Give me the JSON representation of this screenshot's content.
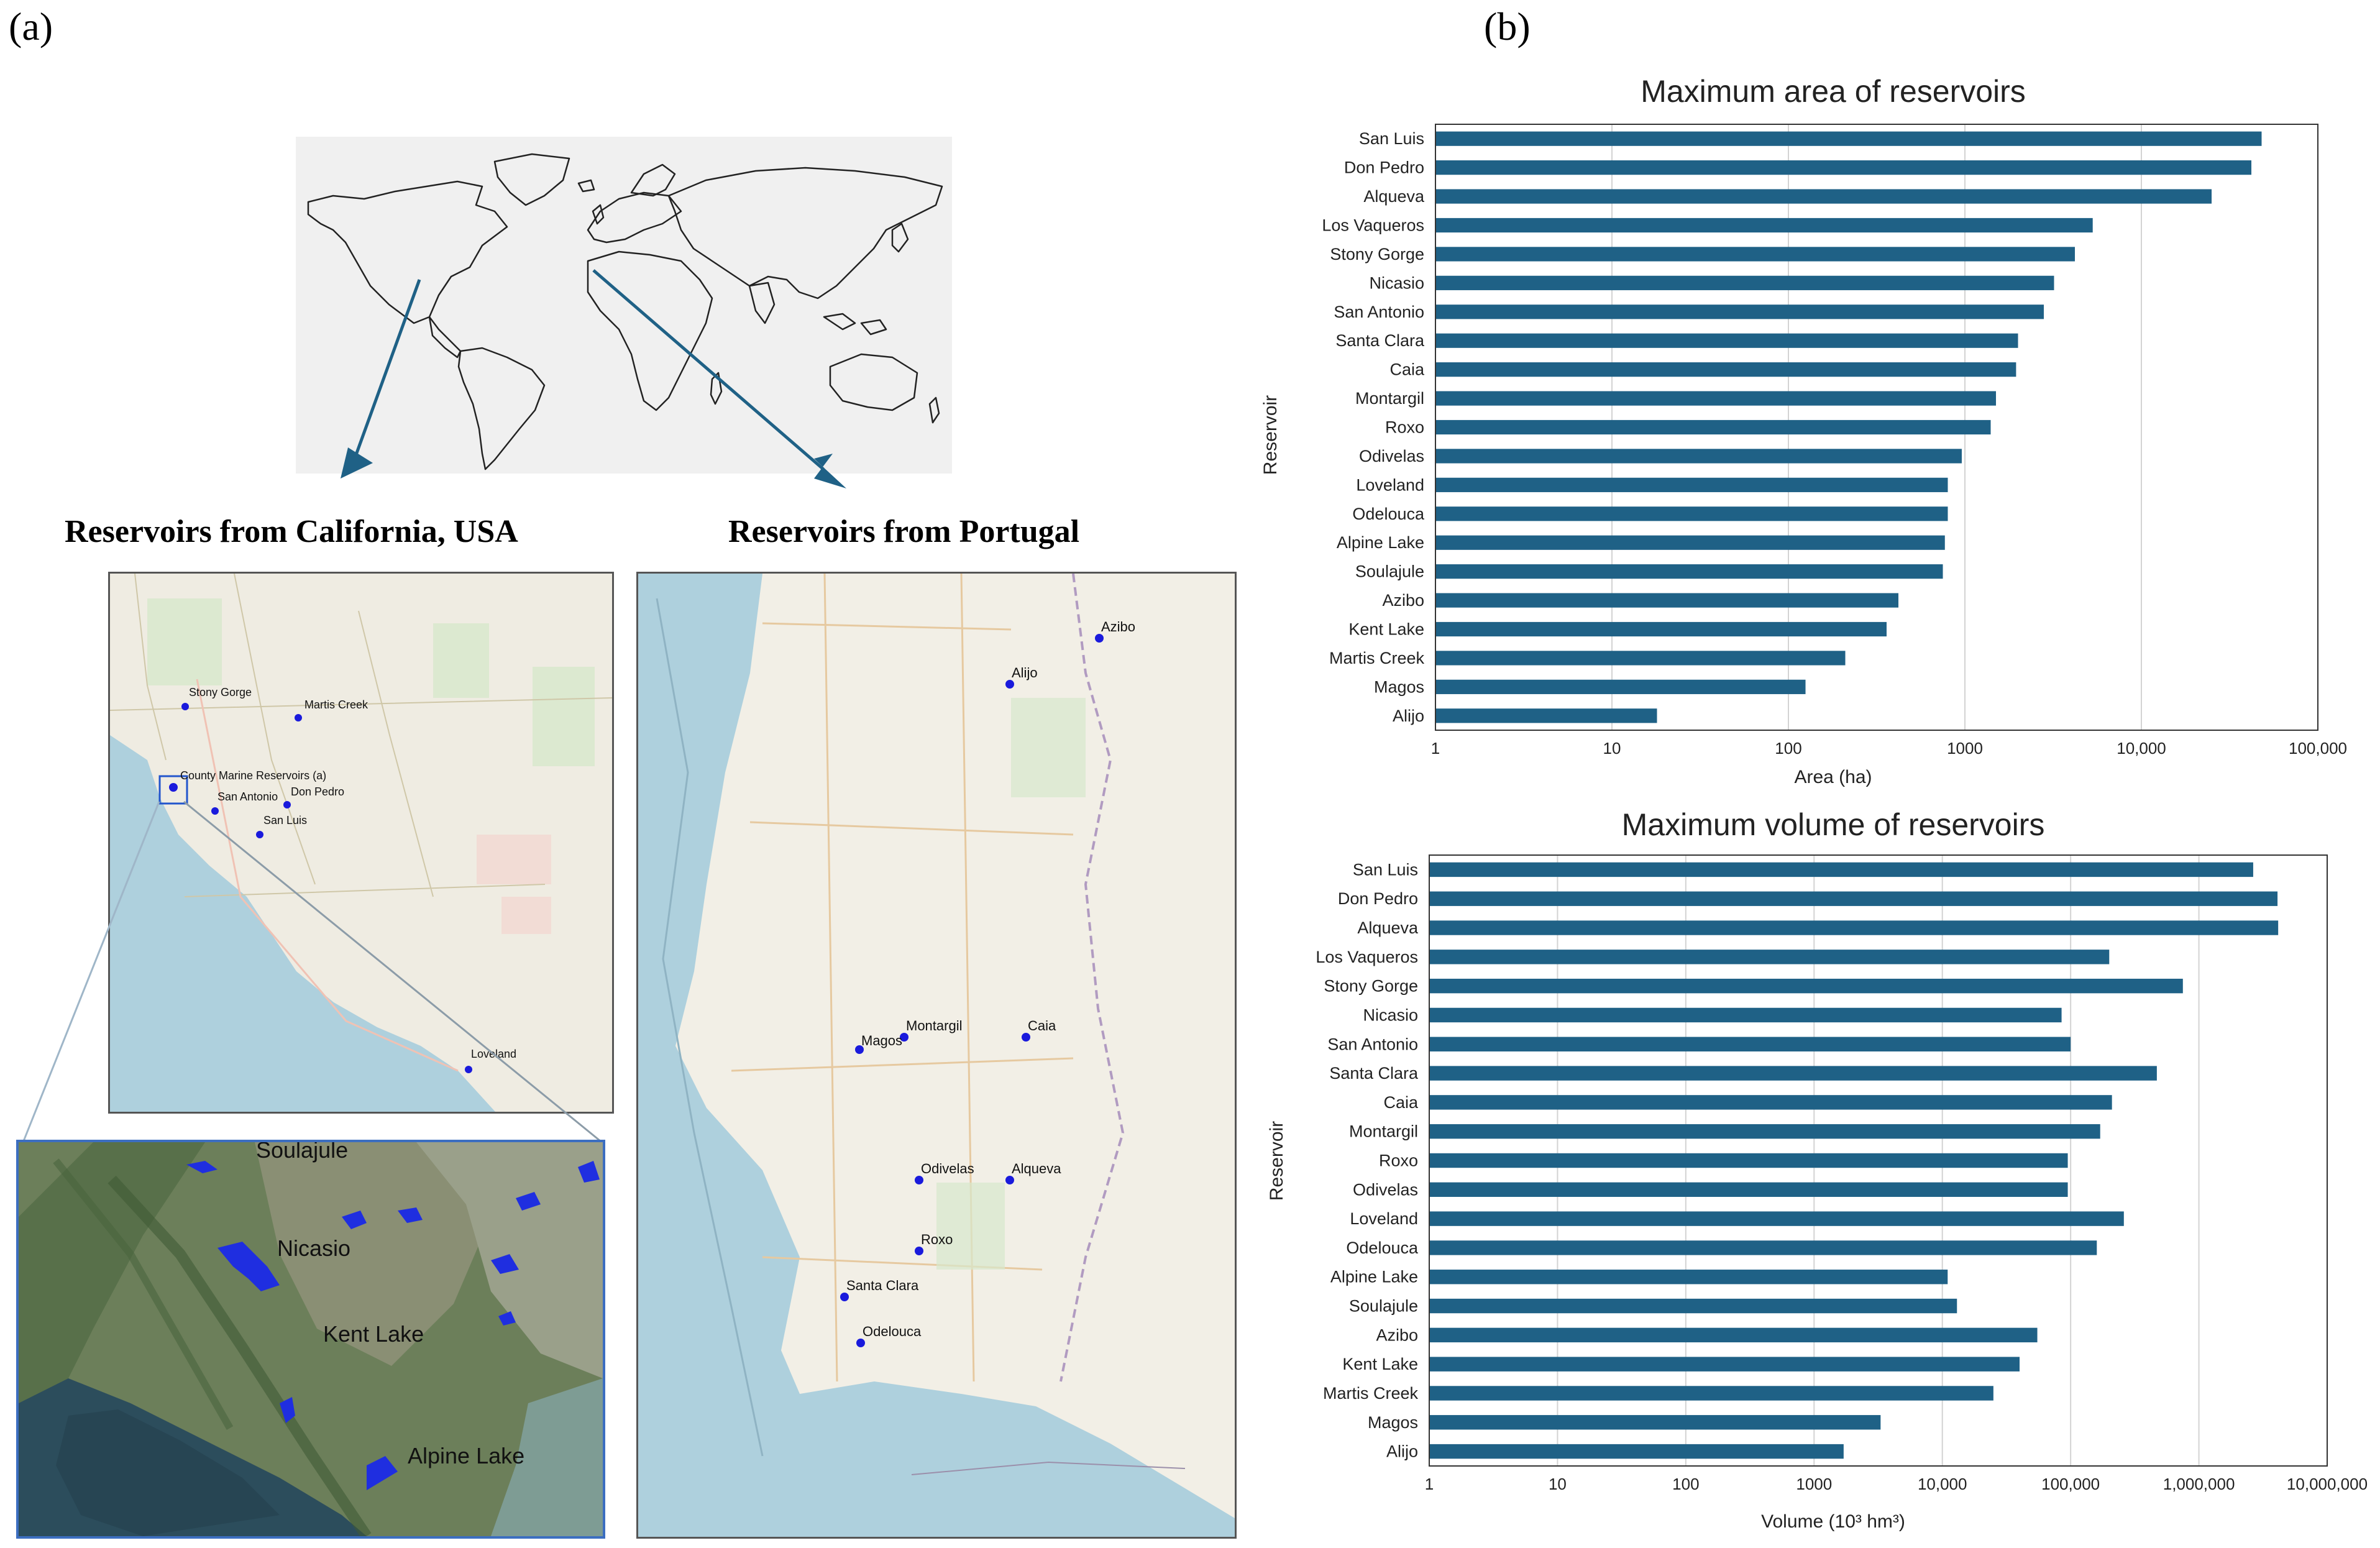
{
  "panel_a": {
    "label": "(a)",
    "california_title": "Reservoirs from California, USA",
    "portugal_title": "Reservoirs from Portugal",
    "california_markers": [
      {
        "name": "Stony Gorge"
      },
      {
        "name": "Martis Creek"
      },
      {
        "name": "County Marine Reservoirs (a)"
      },
      {
        "name": "San Antonio"
      },
      {
        "name": "Don Pedro"
      },
      {
        "name": "San Luis"
      },
      {
        "name": "Loveland"
      }
    ],
    "inset_labels": [
      "Soulajule",
      "Nicasio",
      "Kent Lake",
      "Alpine Lake"
    ],
    "portugal_markers": [
      {
        "name": "Azibo"
      },
      {
        "name": "Alijo"
      },
      {
        "name": "Montargil"
      },
      {
        "name": "Caia"
      },
      {
        "name": "Magos"
      },
      {
        "name": "Odivelas"
      },
      {
        "name": "Alqueva"
      },
      {
        "name": "Roxo"
      },
      {
        "name": "Santa Clara"
      },
      {
        "name": "Odelouca"
      }
    ]
  },
  "panel_b": {
    "label": "(b)"
  },
  "colors": {
    "bar": "#1f6186",
    "marker": "#1a1adc",
    "arrow": "#1f6186",
    "water": "#aed0dd",
    "land": "#f1efe6"
  },
  "chart_data": [
    {
      "type": "bar",
      "orientation": "horizontal",
      "title": "Maximum area of reservoirs",
      "xlabel": "Area (ha)",
      "ylabel": "Reservoir",
      "xscale": "log",
      "xlim": [
        1,
        100000
      ],
      "xticks": [
        1,
        10,
        100,
        1000,
        10000,
        100000
      ],
      "xtick_labels": [
        "1",
        "10",
        "100",
        "1000",
        "10,000",
        "100,000"
      ],
      "categories": [
        "San Luis",
        "Don Pedro",
        "Alqueva",
        "Los Vaqueros",
        "Stony Gorge",
        "Nicasio",
        "San Antonio",
        "Santa Clara",
        "Caia",
        "Montargil",
        "Roxo",
        "Odivelas",
        "Loveland",
        "Odelouca",
        "Alpine Lake",
        "Soulajule",
        "Azibo",
        "Kent Lake",
        "Martis Creek",
        "Magos",
        "Alijo"
      ],
      "values": [
        48000,
        42000,
        25000,
        5300,
        4200,
        3200,
        2800,
        2000,
        1950,
        1500,
        1400,
        960,
        800,
        800,
        770,
        750,
        420,
        360,
        210,
        125,
        18
      ],
      "grid": "vertical"
    },
    {
      "type": "bar",
      "orientation": "horizontal",
      "title": "Maximum volume of reservoirs",
      "xlabel": "Volume (10³ hm³)",
      "ylabel": "Reservoir",
      "xscale": "log",
      "xlim": [
        1,
        10000000
      ],
      "xticks": [
        1,
        10,
        100,
        1000,
        10000,
        100000,
        1000000,
        10000000
      ],
      "xtick_labels": [
        "1",
        "10",
        "100",
        "1000",
        "10,000",
        "100,000",
        "1,000,000",
        "10,000,000"
      ],
      "categories": [
        "San Luis",
        "Don Pedro",
        "Alqueva",
        "Los Vaqueros",
        "Stony Gorge",
        "Nicasio",
        "San Antonio",
        "Santa Clara",
        "Caia",
        "Montargil",
        "Roxo",
        "Odivelas",
        "Loveland",
        "Odelouca",
        "Alpine Lake",
        "Soulajule",
        "Azibo",
        "Kent Lake",
        "Martis Creek",
        "Magos",
        "Alijo"
      ],
      "values": [
        2650000,
        4100000,
        4150000,
        200000,
        750000,
        85000,
        100000,
        470000,
        210000,
        170000,
        95000,
        95000,
        260000,
        160000,
        11000,
        13000,
        55000,
        40000,
        25000,
        3300,
        1700
      ],
      "grid": "vertical"
    }
  ]
}
